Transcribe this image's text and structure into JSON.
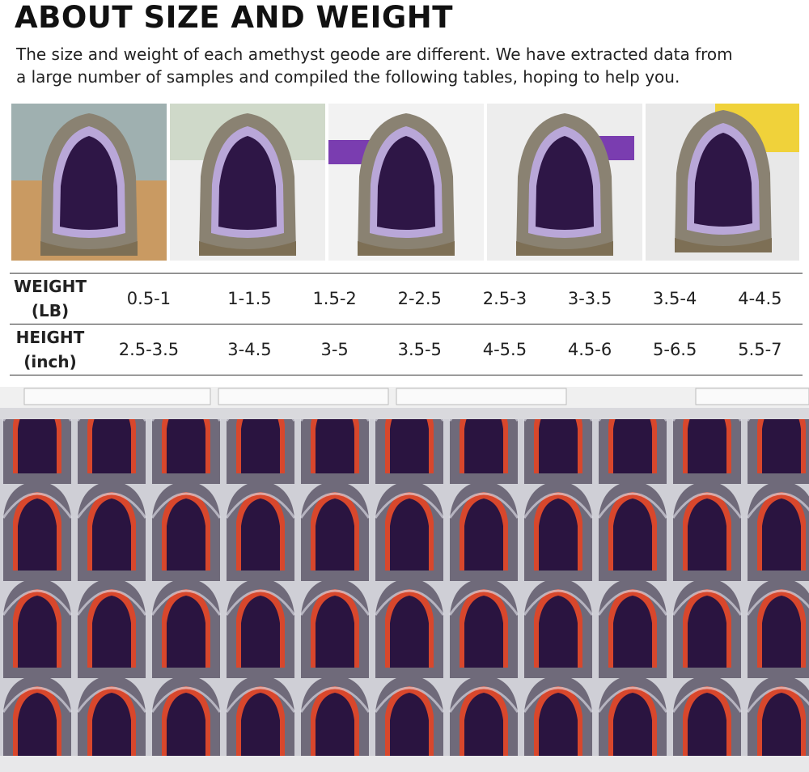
{
  "header": {
    "title": "ABOUT SIZE AND WEIGHT",
    "description": [
      "The size and weight of each amethyst geode are different. We have extracted data from",
      "a large number of samples and compiled the following tables, hoping to help you."
    ]
  },
  "table": {
    "rows": [
      {
        "label": [
          "WEIGHT",
          "(LB)"
        ],
        "cells": [
          "0.5-1",
          "1-1.5",
          "1.5-2",
          "2-2.5",
          "2.5-3",
          "3-3.5",
          "3.5-4",
          "4-4.5"
        ]
      },
      {
        "label": [
          "HEIGHT",
          "(inch)"
        ],
        "cells": [
          "2.5-3.5",
          "3-4.5",
          "3-5",
          "3.5-5",
          "4-5.5",
          "4.5-6",
          "5-6.5",
          "5.5-7"
        ]
      }
    ]
  }
}
